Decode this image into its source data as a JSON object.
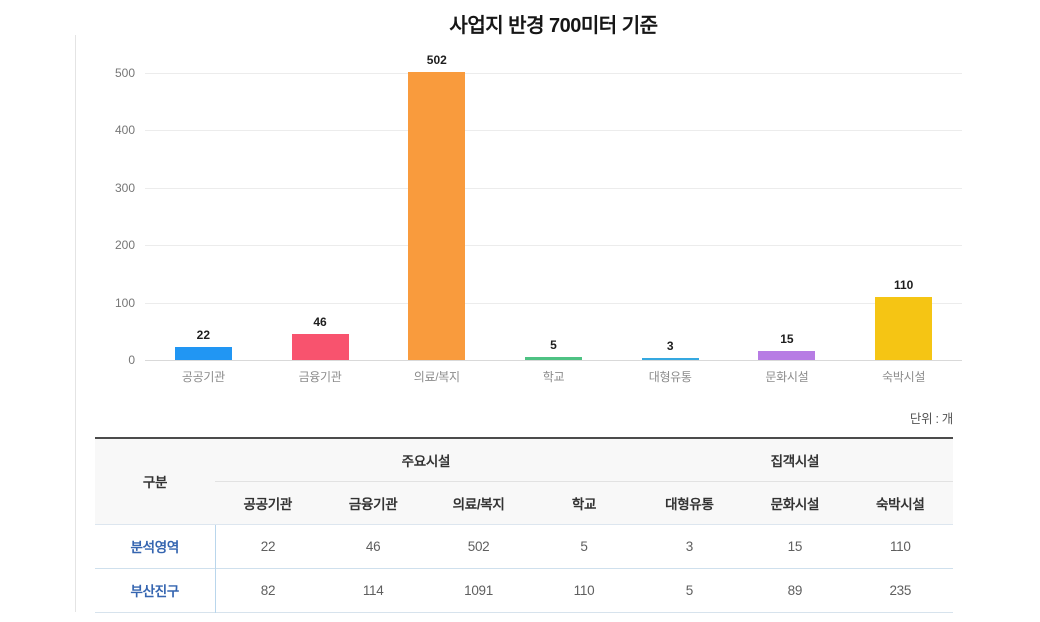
{
  "page": {
    "title": "사업지 반경 700미터 기준",
    "unit_label": "단위 : 개"
  },
  "chart_data": {
    "type": "bar",
    "title": "사업지 반경 700미터 기준",
    "categories": [
      "공공기관",
      "금융기관",
      "의료/복지",
      "학교",
      "대형유통",
      "문화시설",
      "숙박시설"
    ],
    "values": [
      22,
      46,
      502,
      5,
      3,
      15,
      110
    ],
    "bar_colors": [
      "#2196f3",
      "#f8536e",
      "#f99b3d",
      "#4ec283",
      "#35a8e0",
      "#b77ce4",
      "#f5c514"
    ],
    "xlabel": "",
    "ylabel": "",
    "ylim": [
      0,
      500
    ],
    "yticks": [
      0,
      100,
      200,
      300,
      400,
      500
    ],
    "grid": true,
    "legend": "none",
    "unit": "단위 : 개"
  },
  "table": {
    "corner_header": "구분",
    "groups": [
      {
        "label": "주요시설",
        "span": 4
      },
      {
        "label": "집객시설",
        "span": 3
      }
    ],
    "columns": [
      "공공기관",
      "금융기관",
      "의료/복지",
      "학교",
      "대형유통",
      "문화시설",
      "숙박시설"
    ],
    "rows": [
      {
        "label": "분석영역",
        "values": [
          22,
          46,
          502,
          5,
          3,
          15,
          110
        ]
      },
      {
        "label": "부산진구",
        "values": [
          82,
          114,
          1091,
          110,
          5,
          89,
          235
        ]
      }
    ]
  },
  "colors": {
    "title_text": "#161616",
    "grid_line": "#ececec",
    "axis_line": "#d9d9d9",
    "tick_text": "#767676",
    "category_text": "#8c8c8c",
    "value_text": "#1e1e1e",
    "table_top_border": "#4b4b4b",
    "table_header_bg": "#f8f8f8",
    "row_header_text": "#3565b0",
    "row_divider": "#cfe0ed",
    "row_header_divider": "#b9d6ec"
  }
}
